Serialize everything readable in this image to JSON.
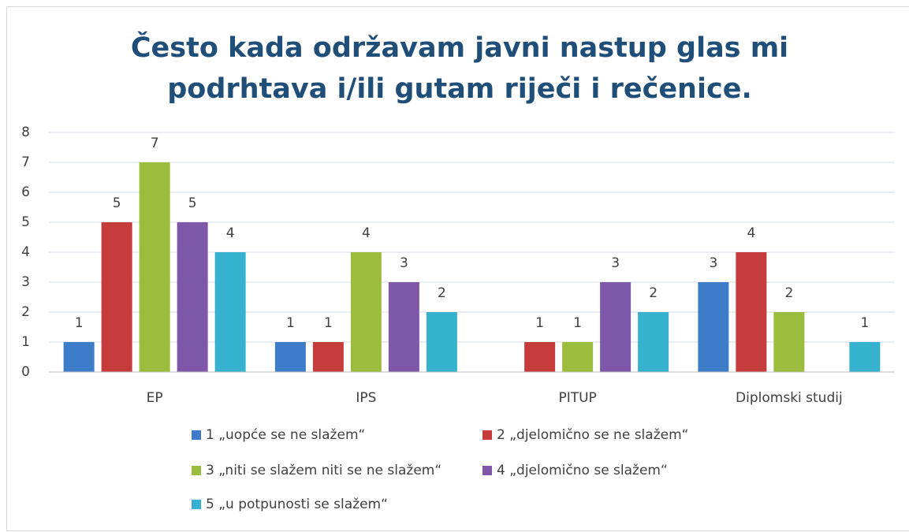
{
  "chart_data": {
    "type": "bar",
    "title": [
      "Često kada održavam javni nastup glas mi",
      "podrhtava i/ili gutam riječi i rečenice."
    ],
    "categories": [
      "EP",
      "IPS",
      "PITUP",
      "Diplomski studij"
    ],
    "series": [
      {
        "name": "1 „uopće se ne slažem“",
        "color": "#3d7cc9",
        "values": [
          1,
          1,
          null,
          3
        ]
      },
      {
        "name": "2 „djelomično se ne slažem“",
        "color": "#c63b3b",
        "values": [
          5,
          1,
          1,
          4
        ]
      },
      {
        "name": "3 „niti se slažem niti se ne slažem“",
        "color": "#9cbc3d",
        "values": [
          7,
          4,
          1,
          2
        ]
      },
      {
        "name": "4 „djelomično se slažem“",
        "color": "#7e57a8",
        "values": [
          5,
          3,
          3,
          null
        ]
      },
      {
        "name": "5 „u potpunosti se slažem“",
        "color": "#36b2cf",
        "values": [
          4,
          2,
          2,
          1
        ]
      }
    ],
    "ylim": [
      0,
      8
    ],
    "yticks": [
      0,
      1,
      2,
      3,
      4,
      5,
      6,
      7,
      8
    ],
    "grid": true,
    "legend": "bottom"
  }
}
